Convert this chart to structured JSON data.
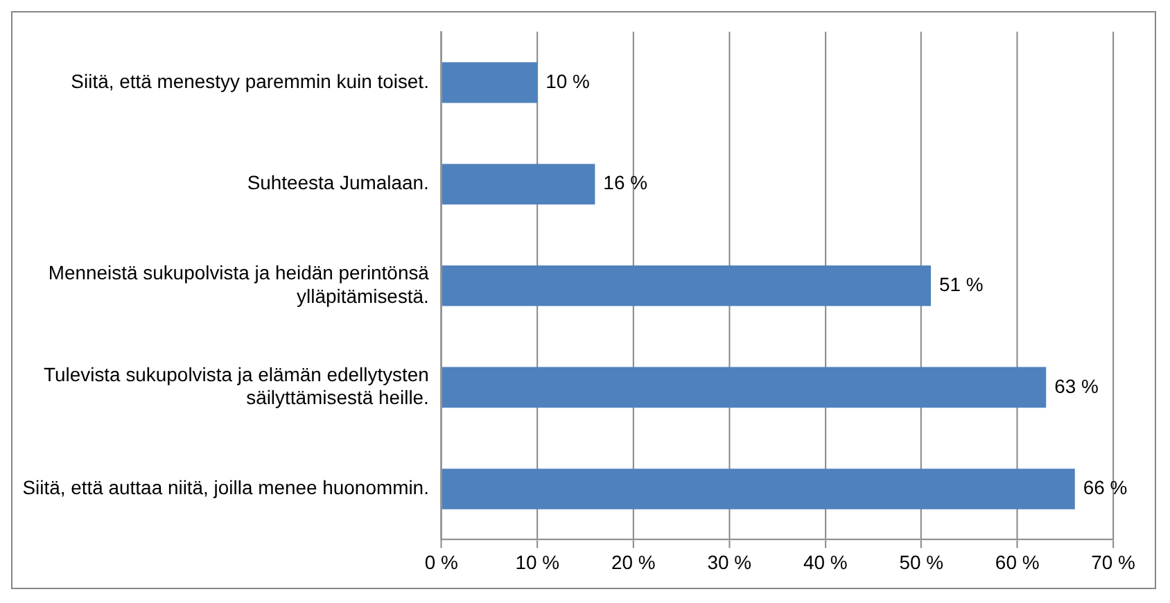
{
  "chart_data": {
    "type": "bar",
    "orientation": "horizontal",
    "categories": [
      "Siitä, että menestyy paremmin kuin toiset.",
      "Suhteesta Jumalaan.",
      "Menneistä sukupolvista ja heidän perintönsä ylläpitämisestä.",
      "Tulevista sukupolvista ja elämän edellytysten säilyttämisestä heille.",
      "Siitä, että auttaa niitä, joilla menee huonommin."
    ],
    "values": [
      10,
      16,
      51,
      63,
      66
    ],
    "value_labels": [
      "10 %",
      "16 %",
      "51 %",
      "63 %",
      "66 %"
    ],
    "color": "#4f81bd",
    "xlim": [
      0,
      70
    ],
    "xticks": [
      {
        "value": 0,
        "label": "0 %"
      },
      {
        "value": 10,
        "label": "10 %"
      },
      {
        "value": 20,
        "label": "20 %"
      },
      {
        "value": 30,
        "label": "30 %"
      },
      {
        "value": 40,
        "label": "40 %"
      },
      {
        "value": 50,
        "label": "50 %"
      },
      {
        "value": 60,
        "label": "60 %"
      },
      {
        "value": 70,
        "label": "70 %"
      }
    ],
    "grid": "x",
    "legend": false
  }
}
